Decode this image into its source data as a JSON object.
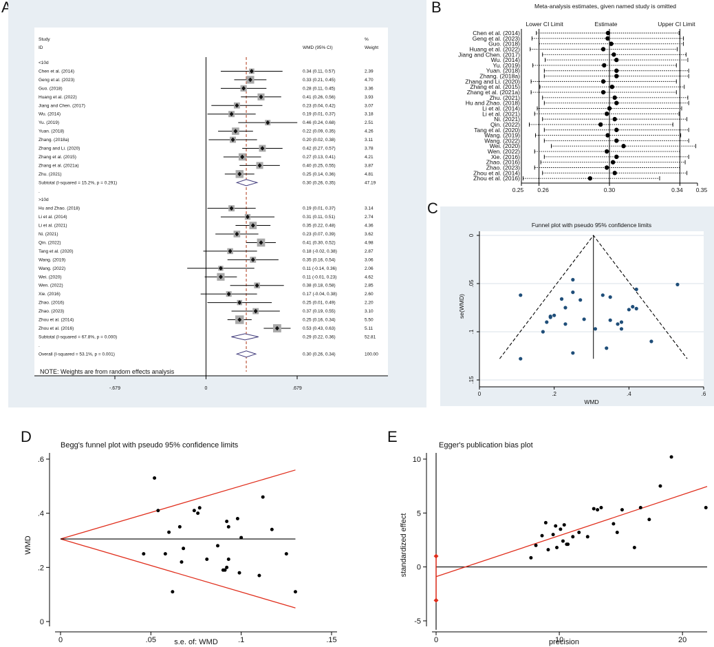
{
  "panels": {
    "a": "A",
    "b": "B",
    "c": "C",
    "d": "D",
    "e": "E"
  },
  "chart_data": [
    {
      "panel": "A",
      "type": "forest",
      "headers": {
        "study1": "Study",
        "study2": "ID",
        "ci": "WMD (95% CI)",
        "w1": "%",
        "w2": "Weight"
      },
      "xticks": [
        "-.679",
        "0",
        ".679"
      ],
      "xlim": [
        -0.679,
        0.679
      ],
      "note": "NOTE: Weights are from random effects analysis",
      "pooled_line": 0.3,
      "rows": [
        {
          "kind": "group",
          "label": "<10d"
        },
        {
          "kind": "study",
          "label": "Chen et al. (2014)",
          "est": 0.34,
          "lo": 0.11,
          "hi": 0.57,
          "ci": "0.34 (0.11, 0.57)",
          "w": "2.39"
        },
        {
          "kind": "study",
          "label": "Geng et al. (2023)",
          "est": 0.33,
          "lo": 0.21,
          "hi": 0.45,
          "ci": "0.33 (0.21, 0.45)",
          "w": "4.70"
        },
        {
          "kind": "study",
          "label": "Guo. (2018)",
          "est": 0.28,
          "lo": 0.11,
          "hi": 0.45,
          "ci": "0.28 (0.11, 0.45)",
          "w": "3.36"
        },
        {
          "kind": "study",
          "label": "Huang et al. (2022)",
          "est": 0.41,
          "lo": 0.26,
          "hi": 0.56,
          "ci": "0.41 (0.26, 0.56)",
          "w": "3.93"
        },
        {
          "kind": "study",
          "label": "Jiang and Chen. (2017)",
          "est": 0.23,
          "lo": 0.04,
          "hi": 0.42,
          "ci": "0.23 (0.04, 0.42)",
          "w": "3.07"
        },
        {
          "kind": "study",
          "label": "Wu. (2014)",
          "est": 0.19,
          "lo": 0.01,
          "hi": 0.37,
          "ci": "0.19 (0.01, 0.37)",
          "w": "3.18"
        },
        {
          "kind": "study",
          "label": "Yu. (2019)",
          "est": 0.46,
          "lo": 0.24,
          "hi": 0.68,
          "ci": "0.46 (0.24, 0.68)",
          "w": "2.51"
        },
        {
          "kind": "study",
          "label": "Yuan. (2018)",
          "est": 0.22,
          "lo": 0.09,
          "hi": 0.35,
          "ci": "0.22 (0.09, 0.35)",
          "w": "4.26"
        },
        {
          "kind": "study",
          "label": "Zhang. (2018a)",
          "est": 0.2,
          "lo": 0.02,
          "hi": 0.38,
          "ci": "0.20 (0.02, 0.38)",
          "w": "3.11"
        },
        {
          "kind": "study",
          "label": "Zhang and Li. (2020)",
          "est": 0.42,
          "lo": 0.27,
          "hi": 0.57,
          "ci": "0.42 (0.27, 0.57)",
          "w": "3.78"
        },
        {
          "kind": "study",
          "label": "Zhang et al. (2015)",
          "est": 0.27,
          "lo": 0.13,
          "hi": 0.41,
          "ci": "0.27 (0.13, 0.41)",
          "w": "4.21"
        },
        {
          "kind": "study",
          "label": "Zhang et al. (2021a)",
          "est": 0.4,
          "lo": 0.25,
          "hi": 0.55,
          "ci": "0.40 (0.25, 0.55)",
          "w": "3.87"
        },
        {
          "kind": "study",
          "label": "Zhu. (2021)",
          "est": 0.25,
          "lo": 0.14,
          "hi": 0.36,
          "ci": "0.25 (0.14, 0.36)",
          "w": "4.81"
        },
        {
          "kind": "diamond",
          "label": "Subtotal  (I-squared = 15.2%, p = 0.291)",
          "est": 0.3,
          "lo": 0.26,
          "hi": 0.35,
          "ci": "0.30 (0.26, 0.35)",
          "w": "47.19"
        },
        {
          "kind": "text",
          "label": "."
        },
        {
          "kind": "group",
          "label": ">10d"
        },
        {
          "kind": "study",
          "label": "Hu and Zhao. (2018)",
          "est": 0.19,
          "lo": 0.01,
          "hi": 0.37,
          "ci": "0.19 (0.01, 0.37)",
          "w": "3.14"
        },
        {
          "kind": "study",
          "label": "Li et al. (2014)",
          "est": 0.31,
          "lo": 0.11,
          "hi": 0.51,
          "ci": "0.31 (0.11, 0.51)",
          "w": "2.74"
        },
        {
          "kind": "study",
          "label": "Li et al. (2021)",
          "est": 0.35,
          "lo": 0.22,
          "hi": 0.48,
          "ci": "0.35 (0.22, 0.48)",
          "w": "4.36"
        },
        {
          "kind": "study",
          "label": "Ni. (2021)",
          "est": 0.23,
          "lo": 0.07,
          "hi": 0.39,
          "ci": "0.23 (0.07, 0.39)",
          "w": "3.62"
        },
        {
          "kind": "study",
          "label": "Qin. (2022)",
          "est": 0.41,
          "lo": 0.3,
          "hi": 0.52,
          "ci": "0.41 (0.30, 0.52)",
          "w": "4.98"
        },
        {
          "kind": "study",
          "label": "Tang et al. (2020)",
          "est": 0.18,
          "lo": -0.02,
          "hi": 0.38,
          "ci": "0.18 (-0.02, 0.38)",
          "w": "2.87"
        },
        {
          "kind": "study",
          "label": "Wang. (2019)",
          "est": 0.35,
          "lo": 0.16,
          "hi": 0.54,
          "ci": "0.35 (0.16, 0.54)",
          "w": "3.06"
        },
        {
          "kind": "study",
          "label": "Wang. (2022)",
          "est": 0.11,
          "lo": -0.14,
          "hi": 0.36,
          "ci": "0.11 (-0.14, 0.36)",
          "w": "2.06"
        },
        {
          "kind": "study",
          "label": "Wei. (2020)",
          "est": 0.11,
          "lo": -0.01,
          "hi": 0.23,
          "ci": "0.11 (-0.01, 0.23)",
          "w": "4.62"
        },
        {
          "kind": "study",
          "label": "Wen. (2022)",
          "est": 0.38,
          "lo": 0.18,
          "hi": 0.58,
          "ci": "0.38 (0.18, 0.58)",
          "w": "2.85"
        },
        {
          "kind": "study",
          "label": "Xie. (2016)",
          "est": 0.17,
          "lo": -0.04,
          "hi": 0.38,
          "ci": "0.17 (-0.04, 0.38)",
          "w": "2.60"
        },
        {
          "kind": "study",
          "label": "Zhao. (2016)",
          "est": 0.25,
          "lo": 0.01,
          "hi": 0.49,
          "ci": "0.25 (0.01, 0.49)",
          "w": "2.20"
        },
        {
          "kind": "study",
          "label": "Zhao. (2023)",
          "est": 0.37,
          "lo": 0.19,
          "hi": 0.55,
          "ci": "0.37 (0.19, 0.55)",
          "w": "3.10"
        },
        {
          "kind": "study",
          "label": "Zhou et al. (2014)",
          "est": 0.25,
          "lo": 0.16,
          "hi": 0.34,
          "ci": "0.25 (0.16, 0.34)",
          "w": "5.50"
        },
        {
          "kind": "study",
          "label": "Zhou et al. (2016)",
          "est": 0.53,
          "lo": 0.43,
          "hi": 0.63,
          "ci": "0.53 (0.43, 0.63)",
          "w": "5.11"
        },
        {
          "kind": "diamond",
          "label": "Subtotal  (I-squared = 67.8%, p = 0.000)",
          "est": 0.29,
          "lo": 0.22,
          "hi": 0.36,
          "ci": "0.29 (0.22, 0.36)",
          "w": "52.81"
        },
        {
          "kind": "text",
          "label": "."
        },
        {
          "kind": "diamond",
          "label": "Overall  (I-squared = 53.1%, p = 0.001)",
          "est": 0.3,
          "lo": 0.26,
          "hi": 0.34,
          "ci": "0.30 (0.26, 0.34)",
          "w": "100.00"
        }
      ]
    },
    {
      "panel": "B",
      "type": "sensitivity",
      "title": "Meta-analysis estimates, given named study is omitted",
      "legend": {
        "lower": "Lower CI Limit",
        "est": "Estimate",
        "upper": "Upper CI Limit"
      },
      "ref_lines": [
        0.26,
        0.3,
        0.34
      ],
      "xlim": [
        0.25,
        0.35
      ],
      "xticks": [
        {
          "v": 0.25,
          "t": "0.25"
        },
        {
          "v": 0.26,
          "t": "0.26"
        },
        {
          "v": 0.3,
          "t": "0.30"
        },
        {
          "v": 0.34,
          "t": "0.34"
        },
        {
          "v": 0.35,
          "t": "0.35"
        }
      ],
      "studies": [
        {
          "label": "Chen et al. (2014)",
          "est": 0.2992,
          "lo": 0.2585,
          "hi": 0.3395
        },
        {
          "label": "Geng et al. (2023)",
          "est": 0.299,
          "lo": 0.256,
          "hi": 0.342
        },
        {
          "label": "Guo. (2018)",
          "est": 0.301,
          "lo": 0.26,
          "hi": 0.342
        },
        {
          "label": "Huang et al. (2022)",
          "est": 0.2965,
          "lo": 0.255,
          "hi": 0.3385
        },
        {
          "label": "Jiang and Chen. (2017)",
          "est": 0.3025,
          "lo": 0.262,
          "hi": 0.3435
        },
        {
          "label": "Wu. (2014)",
          "est": 0.304,
          "lo": 0.2635,
          "hi": 0.3445
        },
        {
          "label": "Yu. (2019)",
          "est": 0.297,
          "lo": 0.2565,
          "hi": 0.338
        },
        {
          "label": "Yuan. (2018)",
          "est": 0.304,
          "lo": 0.263,
          "hi": 0.345
        },
        {
          "label": "Zhang. (2018a)",
          "est": 0.304,
          "lo": 0.263,
          "hi": 0.345
        },
        {
          "label": "Zhang and Li. (2020)",
          "est": 0.2965,
          "lo": 0.2555,
          "hi": 0.338
        },
        {
          "label": "Zhang et al. (2015)",
          "est": 0.3015,
          "lo": 0.2605,
          "hi": 0.3425
        },
        {
          "label": "Zhang et al. (2021a)",
          "est": 0.2965,
          "lo": 0.2555,
          "hi": 0.338
        },
        {
          "label": "Zhu. (2021)",
          "est": 0.303,
          "lo": 0.262,
          "hi": 0.3445
        },
        {
          "label": "Hu and Zhao. (2018)",
          "est": 0.304,
          "lo": 0.263,
          "hi": 0.345
        },
        {
          "label": "Li et al. (2014)",
          "est": 0.3,
          "lo": 0.259,
          "hi": 0.341
        },
        {
          "label": "Li et al. (2021)",
          "est": 0.2985,
          "lo": 0.2575,
          "hi": 0.3395
        },
        {
          "label": "Ni. (2021)",
          "est": 0.303,
          "lo": 0.262,
          "hi": 0.344
        },
        {
          "label": "Qin. (2022)",
          "est": 0.295,
          "lo": 0.2545,
          "hi": 0.336
        },
        {
          "label": "Tang et al. (2020)",
          "est": 0.304,
          "lo": 0.263,
          "hi": 0.345
        },
        {
          "label": "Wang. (2019)",
          "est": 0.299,
          "lo": 0.258,
          "hi": 0.3405
        },
        {
          "label": "Wang. (2022)",
          "est": 0.304,
          "lo": 0.263,
          "hi": 0.345
        },
        {
          "label": "Wei. (2020)",
          "est": 0.308,
          "lo": 0.267,
          "hi": 0.349
        },
        {
          "label": "Wen. (2022)",
          "est": 0.2985,
          "lo": 0.2575,
          "hi": 0.34
        },
        {
          "label": "Xie. (2016)",
          "est": 0.304,
          "lo": 0.263,
          "hi": 0.345
        },
        {
          "label": "Zhao. (2016)",
          "est": 0.302,
          "lo": 0.261,
          "hi": 0.343
        },
        {
          "label": "Zhao. (2023)",
          "est": 0.2985,
          "lo": 0.2575,
          "hi": 0.34
        },
        {
          "label": "Zhou et al. (2014)",
          "est": 0.303,
          "lo": 0.262,
          "hi": 0.344
        },
        {
          "label": "Zhou et al. (2016)",
          "est": 0.289,
          "lo": 0.251,
          "hi": 0.3285
        }
      ]
    },
    {
      "panel": "C",
      "type": "scatter",
      "title": "Funnel plot with pseudo 95% confidence limits",
      "xlabel": "WMD",
      "ylabel": "se(WMD)",
      "xlim": [
        0,
        0.6
      ],
      "ylim": [
        0,
        0.15
      ],
      "y_inverted": true,
      "xticks": [
        {
          "v": 0,
          "t": "0"
        },
        {
          "v": 0.2,
          "t": ".2"
        },
        {
          "v": 0.4,
          "t": ".4"
        },
        {
          "v": 0.6,
          "t": ".6"
        }
      ],
      "yticks": [
        {
          "v": 0,
          "t": "0"
        },
        {
          "v": 0.05,
          "t": ".05"
        },
        {
          "v": 0.1,
          "t": ".1"
        },
        {
          "v": 0.15,
          "t": ".15"
        }
      ],
      "pooled": 0.305,
      "se_max": 0.128,
      "points": [
        [
          0.11,
          0.062
        ],
        [
          0.11,
          0.128
        ],
        [
          0.17,
          0.1
        ],
        [
          0.18,
          0.09
        ],
        [
          0.19,
          0.084
        ],
        [
          0.2,
          0.083
        ],
        [
          0.19,
          0.085
        ],
        [
          0.22,
          0.066
        ],
        [
          0.23,
          0.075
        ],
        [
          0.23,
          0.092
        ],
        [
          0.25,
          0.046
        ],
        [
          0.25,
          0.059
        ],
        [
          0.25,
          0.122
        ],
        [
          0.27,
          0.067
        ],
        [
          0.28,
          0.087
        ],
        [
          0.31,
          0.097
        ],
        [
          0.33,
          0.062
        ],
        [
          0.34,
          0.117
        ],
        [
          0.35,
          0.064
        ],
        [
          0.35,
          0.088
        ],
        [
          0.37,
          0.092
        ],
        [
          0.38,
          0.097
        ],
        [
          0.38,
          0.09
        ],
        [
          0.4,
          0.077
        ],
        [
          0.41,
          0.074
        ],
        [
          0.42,
          0.056
        ],
        [
          0.42,
          0.076
        ],
        [
          0.46,
          0.11
        ],
        [
          0.53,
          0.051
        ]
      ]
    },
    {
      "panel": "D",
      "type": "scatter",
      "title": "Begg's funnel plot with pseudo 95% confidence limits",
      "xlabel": "s.e. of: WMD",
      "ylabel": "WMD",
      "xlim": [
        0,
        0.15
      ],
      "ylim": [
        0,
        0.6
      ],
      "xticks": [
        {
          "v": 0,
          "t": "0"
        },
        {
          "v": 0.05,
          "t": ".05"
        },
        {
          "v": 0.1,
          "t": ".1"
        },
        {
          "v": 0.15,
          "t": ".15"
        }
      ],
      "yticks": [
        {
          "v": 0,
          "t": "0"
        },
        {
          "v": 0.2,
          "t": ".2"
        },
        {
          "v": 0.4,
          "t": ".4"
        },
        {
          "v": 0.6,
          "t": ".6"
        }
      ],
      "pooled": 0.305,
      "se_max": 0.13,
      "points": [
        [
          0.046,
          0.25
        ],
        [
          0.052,
          0.53
        ],
        [
          0.054,
          0.41
        ],
        [
          0.058,
          0.25
        ],
        [
          0.06,
          0.33
        ],
        [
          0.062,
          0.11
        ],
        [
          0.066,
          0.35
        ],
        [
          0.068,
          0.27
        ],
        [
          0.067,
          0.22
        ],
        [
          0.074,
          0.41
        ],
        [
          0.076,
          0.4
        ],
        [
          0.077,
          0.42
        ],
        [
          0.081,
          0.23
        ],
        [
          0.087,
          0.28
        ],
        [
          0.09,
          0.19
        ],
        [
          0.091,
          0.19
        ],
        [
          0.092,
          0.37
        ],
        [
          0.092,
          0.2
        ],
        [
          0.093,
          0.23
        ],
        [
          0.093,
          0.35
        ],
        [
          0.098,
          0.38
        ],
        [
          0.099,
          0.18
        ],
        [
          0.1,
          0.31
        ],
        [
          0.11,
          0.17
        ],
        [
          0.112,
          0.46
        ],
        [
          0.117,
          0.34
        ],
        [
          0.125,
          0.25
        ],
        [
          0.13,
          0.11
        ]
      ]
    },
    {
      "panel": "E",
      "type": "scatter",
      "title": "Egger's publication bias plot",
      "xlabel": "precision",
      "ylabel": "standardized effect",
      "xlim": [
        0,
        22
      ],
      "ylim": [
        -5,
        10
      ],
      "xticks": [
        {
          "v": 0,
          "t": "0"
        },
        {
          "v": 10,
          "t": "10"
        },
        {
          "v": 20,
          "t": "20"
        }
      ],
      "yticks": [
        {
          "v": -5,
          "t": "-5"
        },
        {
          "v": 0,
          "t": "0"
        },
        {
          "v": 5,
          "t": "5"
        },
        {
          "v": 10,
          "t": "10"
        }
      ],
      "intercept": -0.9,
      "slope": 0.38,
      "intercept_ci": [
        -3.1,
        1.0
      ],
      "points": [
        [
          7.7,
          0.85
        ],
        [
          8.1,
          2.0
        ],
        [
          8.6,
          2.9
        ],
        [
          8.9,
          4.1
        ],
        [
          9.1,
          1.6
        ],
        [
          9.5,
          3.0
        ],
        [
          9.7,
          3.8
        ],
        [
          9.8,
          1.8
        ],
        [
          10.1,
          3.5
        ],
        [
          10.3,
          2.4
        ],
        [
          10.4,
          3.9
        ],
        [
          10.6,
          2.1
        ],
        [
          10.7,
          2.1
        ],
        [
          11.1,
          2.8
        ],
        [
          11.6,
          3.2
        ],
        [
          12.3,
          2.8
        ],
        [
          12.8,
          5.4
        ],
        [
          13.1,
          5.3
        ],
        [
          13.4,
          5.5
        ],
        [
          14.4,
          4.0
        ],
        [
          14.7,
          3.2
        ],
        [
          15.1,
          5.3
        ],
        [
          16.1,
          1.8
        ],
        [
          16.6,
          5.5
        ],
        [
          17.3,
          4.4
        ],
        [
          18.2,
          7.5
        ],
        [
          19.1,
          10.2
        ],
        [
          21.9,
          5.5
        ]
      ]
    }
  ]
}
